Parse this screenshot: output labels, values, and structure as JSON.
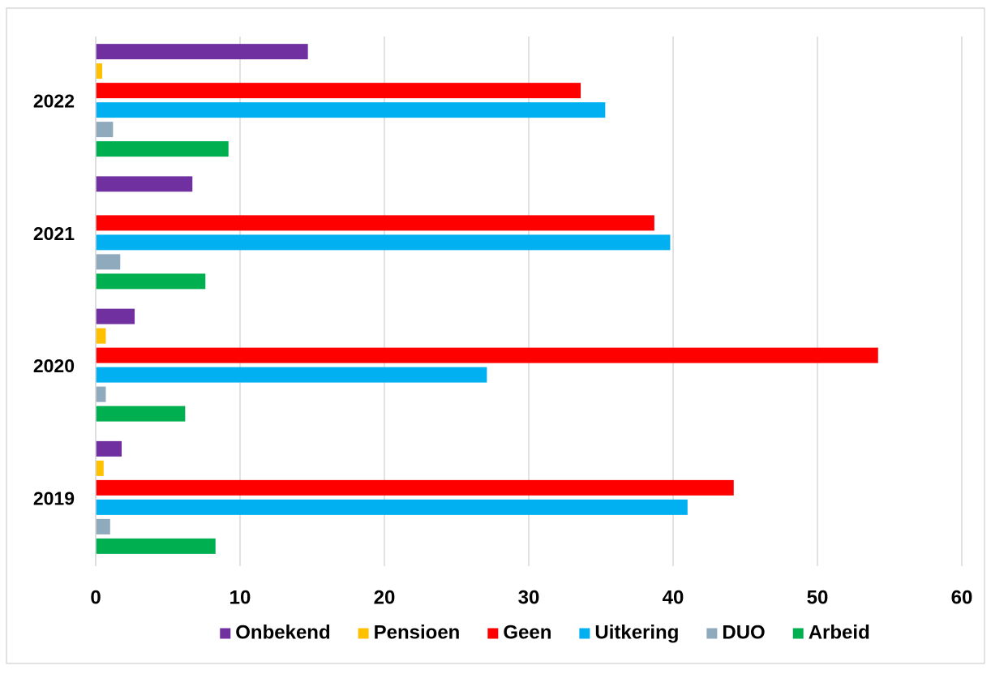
{
  "chart_data": {
    "type": "hbar",
    "categories": [
      "2019",
      "2020",
      "2021",
      "2022"
    ],
    "series": [
      {
        "name": "Onbekend",
        "color": "#7030a0",
        "values": [
          1.8,
          2.7,
          6.7,
          14.7
        ]
      },
      {
        "name": "Pensioen",
        "color": "#ffc000",
        "values": [
          0.55,
          0.7,
          0,
          0.45
        ]
      },
      {
        "name": "Geen",
        "color": "#ff0000",
        "values": [
          44.2,
          54.2,
          38.7,
          33.6
        ]
      },
      {
        "name": "Uitkering",
        "color": "#00b0f0",
        "values": [
          41.0,
          27.1,
          39.8,
          35.3
        ]
      },
      {
        "name": "DUO",
        "color": "#8faabc",
        "values": [
          1.0,
          0.7,
          1.7,
          1.2
        ]
      },
      {
        "name": "Arbeid",
        "color": "#00b050",
        "values": [
          8.3,
          6.2,
          7.6,
          9.2
        ]
      }
    ],
    "xlim": [
      0,
      60
    ],
    "xticks": [
      0,
      10,
      20,
      30,
      40,
      50,
      60
    ],
    "grid": true,
    "legend": "bottom"
  }
}
